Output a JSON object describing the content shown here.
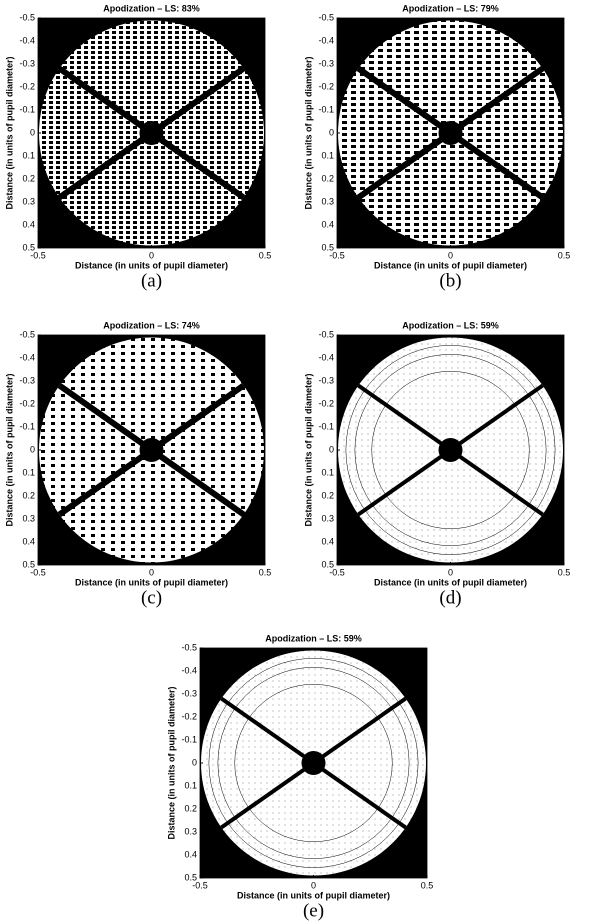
{
  "axes": {
    "x_label": "Distance (in units of pupil diameter)",
    "y_label": "Distance (in units of pupil diameter)",
    "xlim": [
      -0.5,
      0.5
    ],
    "ylim": [
      -0.5,
      0.5
    ],
    "xticks": [
      -0.5,
      0,
      0.5
    ],
    "yticks": [
      -0.5,
      -0.4,
      -0.3,
      -0.2,
      -0.1,
      0,
      0.1,
      0.2,
      0.3,
      0.4,
      0.5
    ]
  },
  "panels": [
    {
      "title": "Apodization – LS: 83%",
      "caption": "(a)"
    },
    {
      "title": "Apodization – LS: 79%",
      "caption": "(b)"
    },
    {
      "title": "Apodization – LS: 74%",
      "caption": "(c)"
    },
    {
      "title": "Apodization – LS: 59%",
      "caption": "(d)"
    },
    {
      "title": "Apodization – LS: 59%",
      "caption": "(e)"
    }
  ]
}
